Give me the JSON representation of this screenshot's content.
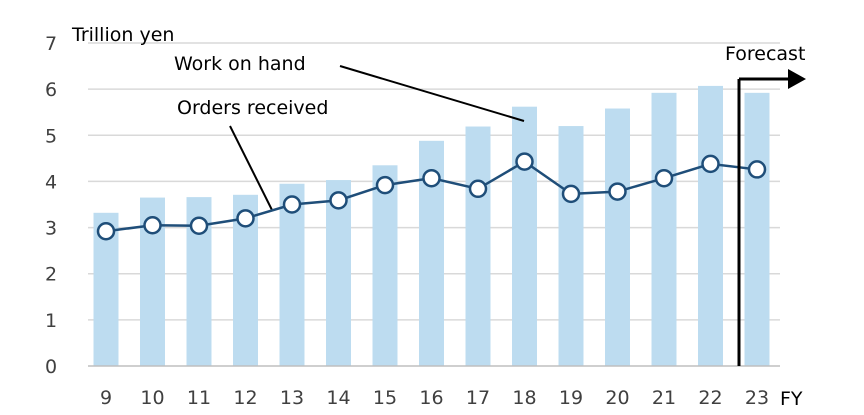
{
  "chart_data": {
    "type": "bar",
    "y_unit_label": "Trillion yen",
    "x_unit_label": "FY",
    "categories": [
      "9",
      "10",
      "11",
      "12",
      "13",
      "14",
      "15",
      "16",
      "17",
      "18",
      "19",
      "20",
      "21",
      "22",
      "23"
    ],
    "ylim": [
      0,
      7
    ],
    "yticks": [
      0,
      1,
      2,
      3,
      4,
      5,
      6,
      7
    ],
    "grid": true,
    "series": [
      {
        "name": "Work on hand",
        "type": "bar",
        "color": "#bddcf0",
        "values": [
          3.32,
          3.65,
          3.66,
          3.71,
          3.95,
          4.03,
          4.35,
          4.88,
          5.19,
          5.62,
          5.2,
          5.58,
          5.92,
          6.07,
          5.92
        ]
      },
      {
        "name": "Orders received",
        "type": "line",
        "color": "#1f4e79",
        "values": [
          2.92,
          3.05,
          3.04,
          3.2,
          3.5,
          3.59,
          3.92,
          4.07,
          3.84,
          4.43,
          3.73,
          3.78,
          4.07,
          4.38,
          4.26
        ]
      }
    ],
    "forecast_label": "Forecast",
    "forecast_from_category": "23"
  }
}
